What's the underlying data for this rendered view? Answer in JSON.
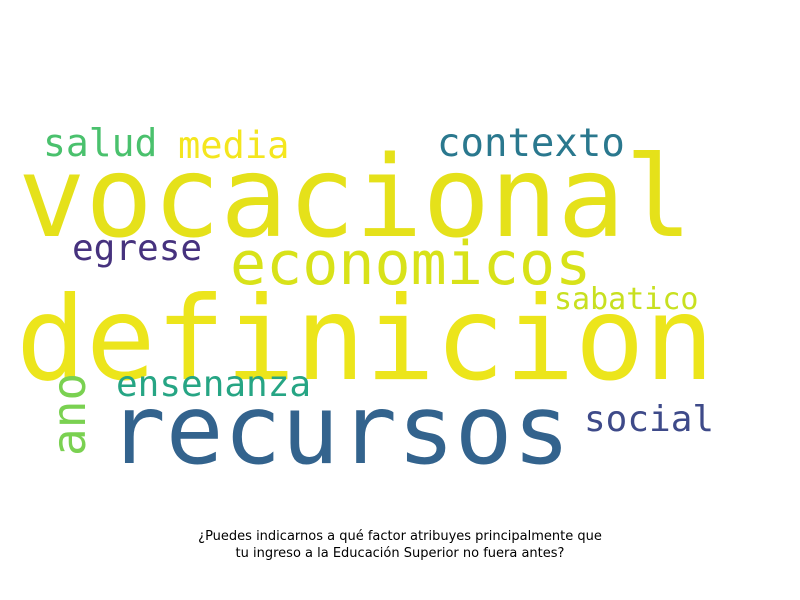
{
  "caption": {
    "line1": "¿Puedes indicarnos a qué factor atribuyes principalmente que",
    "line2": "tu ingreso a la Educación Superior no fuera antes?"
  },
  "words": [
    {
      "text": "vocacional",
      "color": "#e5e11a"
    },
    {
      "text": "definicion",
      "color": "#ece51b"
    },
    {
      "text": "recursos",
      "color": "#33638d"
    },
    {
      "text": "economicos",
      "color": "#d8e219"
    },
    {
      "text": "contexto",
      "color": "#2a788e"
    },
    {
      "text": "salud",
      "color": "#4ac16d"
    },
    {
      "text": "media",
      "color": "#f4e61e"
    },
    {
      "text": "egrese",
      "color": "#46327e"
    },
    {
      "text": "sabatico",
      "color": "#c8e020"
    },
    {
      "text": "ensenanza",
      "color": "#26a584"
    },
    {
      "text": "social",
      "color": "#3e4a89"
    },
    {
      "text": "ano",
      "color": "#7ad151"
    }
  ]
}
